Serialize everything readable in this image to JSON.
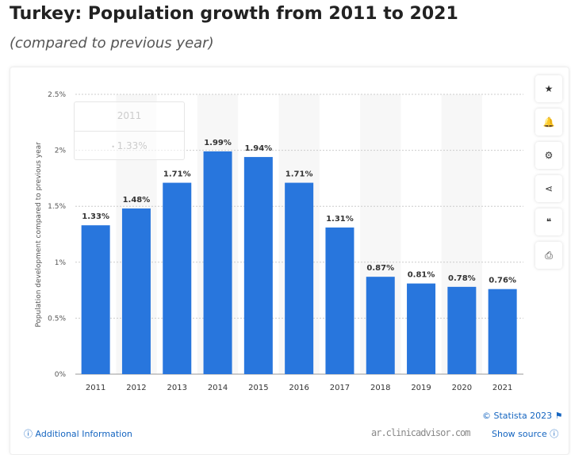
{
  "title": "Turkey: Population growth from 2011 to 2021",
  "subtitle": "(compared to previous year)",
  "chart_data": {
    "type": "bar",
    "categories": [
      "2011",
      "2012",
      "2013",
      "2014",
      "2015",
      "2016",
      "2017",
      "2018",
      "2019",
      "2020",
      "2021"
    ],
    "values": [
      1.33,
      1.48,
      1.71,
      1.99,
      1.94,
      1.71,
      1.31,
      0.87,
      0.81,
      0.78,
      0.76
    ],
    "data_labels": [
      "1.33%",
      "1.48%",
      "1.71%",
      "1.99%",
      "1.94%",
      "1.71%",
      "1.31%",
      "0.87%",
      "0.81%",
      "0.78%",
      "0.76%"
    ],
    "ylabel": "Population development compared to previous year",
    "ylim": [
      0,
      2.5
    ],
    "yticks": [
      "0%",
      "0.5%",
      "1%",
      "1.5%",
      "2%",
      "2.5%"
    ],
    "grid": true,
    "bar_color": "#2876dd"
  },
  "tooltip": {
    "title": "2011",
    "value": "1.33%"
  },
  "sidebar": [
    {
      "icon": "star-icon",
      "glyph": "★"
    },
    {
      "icon": "bell-icon",
      "glyph": "🔔"
    },
    {
      "icon": "gear-icon",
      "glyph": "⚙"
    },
    {
      "icon": "share-icon",
      "glyph": "⋖"
    },
    {
      "icon": "quote-icon",
      "glyph": "❝"
    },
    {
      "icon": "print-icon",
      "glyph": "⎙"
    }
  ],
  "footer": {
    "additional": "Additional Information",
    "copyright": "© Statista 2023",
    "source": "Show source"
  },
  "watermark": "ar.clinicadvisor.com"
}
